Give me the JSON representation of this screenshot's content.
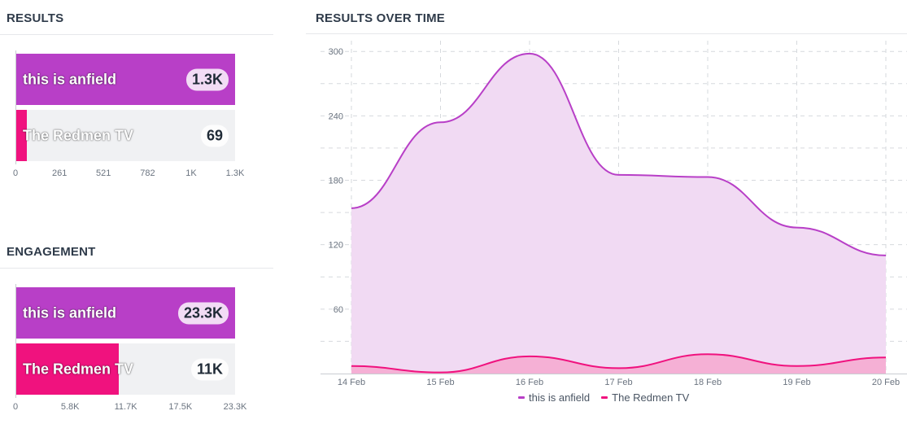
{
  "results": {
    "title": "RESULTS"
  },
  "engagement": {
    "title": "ENGAGEMENT"
  },
  "over_time": {
    "title": "RESULTS OVER TIME"
  },
  "colors": {
    "anfield": "#b83fc7",
    "redmen": "#f0127e",
    "anfield_fill": "#f1daf3",
    "redmen_fill": "#f6a8cf"
  },
  "chart_data": [
    {
      "type": "bar",
      "title": "RESULTS",
      "categories": [
        "this is anfield",
        "The Redmen TV"
      ],
      "values": [
        1300,
        69
      ],
      "value_labels": [
        "1.3K",
        "69"
      ],
      "xlim": [
        0,
        1300
      ],
      "tick_values": [
        0,
        261,
        521,
        782,
        1040,
        1300
      ],
      "tick_labels": [
        "0",
        "261",
        "521",
        "782",
        "1K",
        "1.3K"
      ]
    },
    {
      "type": "bar",
      "title": "ENGAGEMENT",
      "categories": [
        "this is anfield",
        "The Redmen TV"
      ],
      "values": [
        23300,
        11000
      ],
      "value_labels": [
        "23.3K",
        "11K"
      ],
      "xlim": [
        0,
        23300
      ],
      "tick_values": [
        0,
        5800,
        11700,
        17500,
        23300
      ],
      "tick_labels": [
        "0",
        "5.8K",
        "11.7K",
        "17.5K",
        "23.3K"
      ]
    },
    {
      "type": "area",
      "title": "RESULTS OVER TIME",
      "x": [
        "14 Feb",
        "15 Feb",
        "16 Feb",
        "17 Feb",
        "18 Feb",
        "19 Feb",
        "20 Feb"
      ],
      "series": [
        {
          "name": "this is anfield",
          "values": [
            154,
            234,
            298,
            185,
            183,
            136,
            110
          ]
        },
        {
          "name": "The Redmen TV",
          "values": [
            7,
            1,
            16,
            5,
            18,
            7,
            15
          ]
        }
      ],
      "ylim": [
        0,
        310
      ],
      "y_ticks": [
        60,
        120,
        180,
        240,
        300
      ],
      "grid": true,
      "legend": "bottom-center"
    }
  ]
}
